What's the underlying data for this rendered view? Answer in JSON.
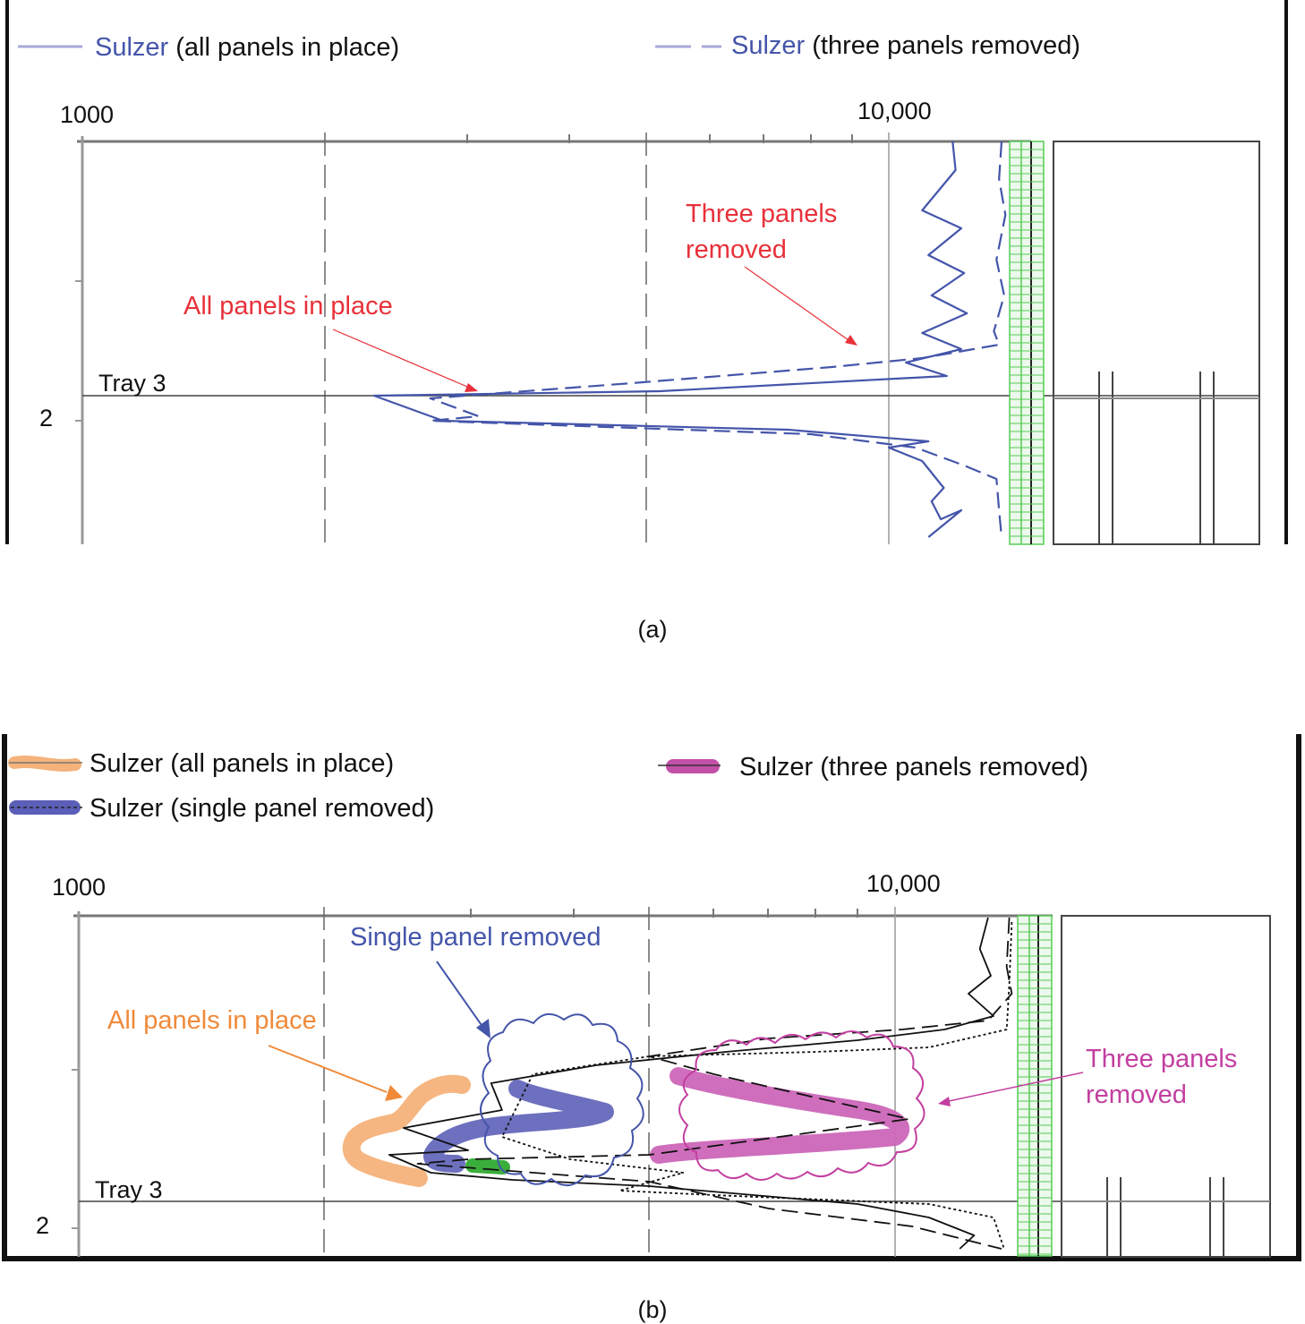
{
  "colors": {
    "blue": "#4455aa",
    "red": "#e8313a",
    "orange": "#f08a3a",
    "orange_light": "#f5b27a",
    "magenta": "#c23fa0",
    "magenta_light": "#cc66b8",
    "blue_fill": "#6c6fc0",
    "green": "#3aae3a",
    "grid_green": "#55cc55",
    "black": "#111111",
    "gray": "#888888"
  },
  "chart_data": [
    {
      "type": "line",
      "panel": "(a)",
      "x_scale": "log",
      "xlim": [
        1000,
        15000
      ],
      "y_tick_labels": [
        "2"
      ],
      "x_tick_labels": [
        "1000",
        "10,000"
      ],
      "legend": [
        {
          "prefix": "Sulzer",
          "rest": " (all panels in place)",
          "style": "solid"
        },
        {
          "prefix": "Sulzer",
          "rest": " (three panels removed)",
          "style": "dashed"
        }
      ],
      "annotations": {
        "all_panels": "All panels in place",
        "three_panels_1": "Three panels",
        "three_panels_2": "removed",
        "tray": "Tray 3"
      },
      "series": [
        {
          "name": "Sulzer (all panels in place)",
          "style": "solid",
          "points": [
            [
              12000,
              158
            ],
            [
              12100,
              190
            ],
            [
              11000,
              235
            ],
            [
              12300,
              255
            ],
            [
              11200,
              285
            ],
            [
              12400,
              305
            ],
            [
              11300,
              330
            ],
            [
              12500,
              350
            ],
            [
              11000,
              372
            ],
            [
              12300,
              390
            ],
            [
              10500,
              405
            ],
            [
              11800,
              420
            ],
            [
              5200,
              437
            ],
            [
              2300,
              442
            ],
            [
              2800,
              470
            ],
            [
              7500,
              480
            ],
            [
              11200,
              493
            ],
            [
              10000,
              500
            ],
            [
              11000,
              515
            ],
            [
              11700,
              545
            ],
            [
              11300,
              560
            ],
            [
              11600,
              580
            ],
            [
              12300,
              570
            ],
            [
              11200,
              600
            ]
          ]
        },
        {
          "name": "Sulzer (three panels removed)",
          "style": "dashed",
          "points": [
            [
              13800,
              158
            ],
            [
              13700,
              200
            ],
            [
              13950,
              240
            ],
            [
              13600,
              290
            ],
            [
              13900,
              330
            ],
            [
              13500,
              370
            ],
            [
              13700,
              385
            ],
            [
              11000,
              400
            ],
            [
              8500,
              410
            ],
            [
              4800,
              428
            ],
            [
              2700,
              445
            ],
            [
              3100,
              465
            ],
            [
              2700,
              470
            ],
            [
              8000,
              485
            ],
            [
              10800,
              500
            ],
            [
              12400,
              520
            ],
            [
              13600,
              535
            ],
            [
              13700,
              570
            ],
            [
              13800,
              600
            ]
          ]
        }
      ]
    },
    {
      "type": "line",
      "panel": "(b)",
      "x_scale": "log",
      "xlim": [
        1000,
        15000
      ],
      "y_tick_labels": [
        "2"
      ],
      "x_tick_labels": [
        "1000",
        "10,000"
      ],
      "legend": [
        {
          "text": "Sulzer (all panels in place)",
          "color_key": "orange"
        },
        {
          "text": "Sulzer (single panel removed)",
          "color_key": "blue_fill"
        },
        {
          "text": "Sulzer (three panels removed)",
          "color_key": "magenta"
        }
      ],
      "annotations": {
        "single_panel": "Single panel removed",
        "all_panels": "All panels in place",
        "three_panels_1": "Three panels",
        "three_panels_2": "removed",
        "tray": "Tray 3"
      },
      "series": [
        {
          "name": "Sulzer (all panels in place)",
          "style": "solid",
          "points": [
            [
              13000,
              1025
            ],
            [
              12700,
              1060
            ],
            [
              13100,
              1090
            ],
            [
              12300,
              1110
            ],
            [
              13200,
              1135
            ],
            [
              11500,
              1150
            ],
            [
              9000,
              1162
            ],
            [
              6200,
              1175
            ],
            [
              4300,
              1190
            ],
            [
              3200,
              1210
            ],
            [
              3300,
              1240
            ],
            [
              2500,
              1260
            ],
            [
              3000,
              1285
            ],
            [
              2400,
              1290
            ],
            [
              2700,
              1310
            ],
            [
              3400,
              1318
            ],
            [
              5000,
              1325
            ],
            [
              9000,
              1345
            ],
            [
              11000,
              1360
            ],
            [
              12500,
              1380
            ],
            [
              12000,
              1395
            ]
          ]
        },
        {
          "name": "Sulzer (three panels removed)",
          "style": "dashed",
          "points": [
            [
              13800,
              1025
            ],
            [
              13700,
              1080
            ],
            [
              13900,
              1110
            ],
            [
              13000,
              1140
            ],
            [
              10200,
              1150
            ],
            [
              7000,
              1160
            ],
            [
              5000,
              1180
            ],
            [
              6000,
              1200
            ],
            [
              10400,
              1250
            ],
            [
              5000,
              1290
            ],
            [
              3000,
              1295
            ],
            [
              2600,
              1300
            ],
            [
              5000,
              1320
            ],
            [
              7000,
              1350
            ],
            [
              10500,
              1370
            ],
            [
              13500,
              1395
            ]
          ]
        },
        {
          "name": "Sulzer (single panel removed)",
          "style": "dotted",
          "points": [
            [
              13900,
              1030
            ],
            [
              13800,
              1100
            ],
            [
              13700,
              1150
            ],
            [
              11000,
              1170
            ],
            [
              8000,
              1175
            ],
            [
              5000,
              1180
            ],
            [
              3600,
              1200
            ],
            [
              3300,
              1270
            ],
            [
              4000,
              1295
            ],
            [
              5500,
              1310
            ],
            [
              4600,
              1330
            ],
            [
              6000,
              1335
            ],
            [
              11000,
              1345
            ],
            [
              13200,
              1360
            ],
            [
              13600,
              1395
            ]
          ]
        }
      ]
    }
  ],
  "captions": {
    "a": "(a)",
    "b": "(b)"
  }
}
